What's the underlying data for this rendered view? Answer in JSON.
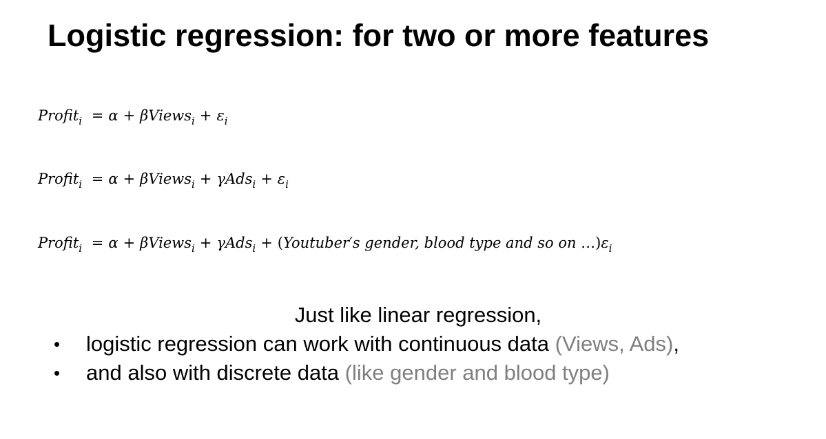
{
  "title": "Logistic regression: for two or more features",
  "equations": {
    "eq1": {
      "lhs": "Profit",
      "sub": "i",
      "equals": "=",
      "alpha": "α",
      "plus1": "+",
      "beta_views": "βViews",
      "sub_views": "i",
      "plus2": "+",
      "epsilon": "ε",
      "sub_eps": "i"
    },
    "eq2": {
      "lhs": "Profit",
      "sub": "i",
      "equals": "=",
      "alpha": "α",
      "plus1": "+",
      "beta_views": "βViews",
      "sub_views": "i",
      "plus2": "+",
      "gamma_ads": "γAds",
      "sub_ads": "i",
      "plus3": "+",
      "epsilon": "ε",
      "sub_eps": "i"
    },
    "eq3": {
      "lhs": "Profit",
      "sub": "i",
      "equals": "=",
      "alpha": "α",
      "plus1": "+",
      "beta_views": "βViews",
      "sub_views": "i",
      "plus2": "+",
      "gamma_ads": "γAds",
      "sub_ads": "i",
      "plus3": "+",
      "open_paren": "(",
      "extra_term": "Youtuber′s gender, blood type and so on …",
      "close_paren": ")",
      "epsilon": "ε",
      "sub_eps": "i"
    }
  },
  "intro": "Just like linear regression,",
  "bullets": [
    {
      "marker": "•",
      "text": "logistic regression can work with continuous data ",
      "note": "(Views, Ads)",
      "trail": ","
    },
    {
      "marker": "•",
      "text": "and also with discrete data ",
      "note": "(like gender and blood type)",
      "trail": ""
    }
  ],
  "colors": {
    "text": "#000000",
    "note": "#7f7f7f",
    "background": "#ffffff"
  }
}
